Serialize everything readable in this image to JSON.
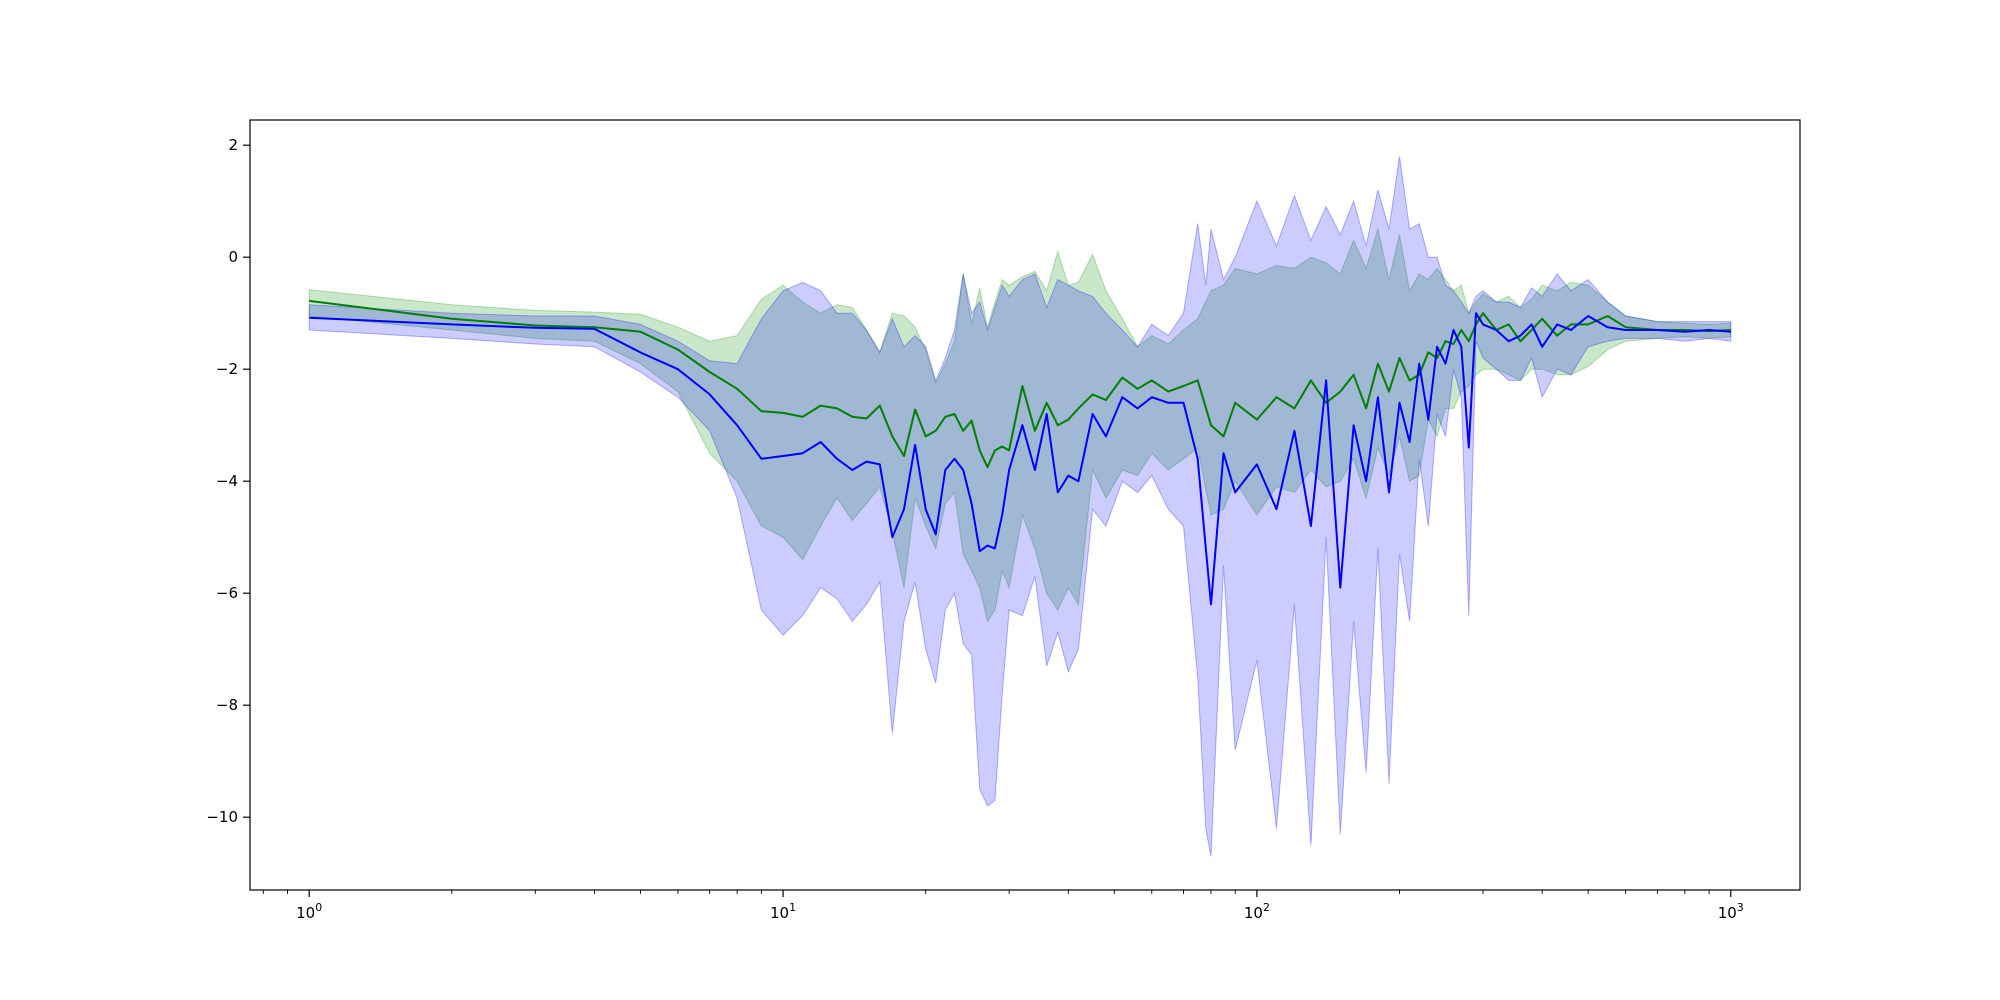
{
  "chart_data": {
    "type": "line",
    "title": "",
    "xlabel": "",
    "ylabel": "",
    "xscale": "log",
    "xlim": [
      0.75,
      1400
    ],
    "ylim": [
      -11.3,
      2.45
    ],
    "grid": false,
    "legend": "none",
    "x_ticks": [
      {
        "value": 1,
        "base": "10",
        "exp": "0"
      },
      {
        "value": 10,
        "base": "10",
        "exp": "1"
      },
      {
        "value": 100,
        "base": "10",
        "exp": "2"
      },
      {
        "value": 1000,
        "base": "10",
        "exp": "3"
      }
    ],
    "y_ticks": [
      {
        "value": 2,
        "label": "2"
      },
      {
        "value": 0,
        "label": "0"
      },
      {
        "value": -2,
        "label": "−2"
      },
      {
        "value": -4,
        "label": "−4"
      },
      {
        "value": -6,
        "label": "−6"
      },
      {
        "value": -8,
        "label": "−8"
      },
      {
        "value": -10,
        "label": "−10"
      }
    ],
    "series": [
      {
        "color": "#008000",
        "band_color": "#2ca02c",
        "band_opacity": 0.25,
        "x": [
          1,
          2,
          3,
          4,
          5,
          6,
          7,
          8,
          9,
          10,
          11,
          12,
          13,
          14,
          15,
          16,
          17,
          18,
          19,
          20,
          21,
          22,
          23,
          24,
          25,
          26,
          27,
          28,
          29,
          30,
          32,
          34,
          36,
          38,
          40,
          42,
          45,
          48,
          52,
          56,
          60,
          65,
          70,
          75,
          80,
          85,
          90,
          100,
          110,
          120,
          130,
          140,
          150,
          160,
          170,
          180,
          190,
          200,
          210,
          220,
          230,
          240,
          250,
          260,
          270,
          280,
          290,
          300,
          320,
          340,
          360,
          380,
          400,
          430,
          460,
          500,
          550,
          600,
          700,
          800,
          900,
          1000
        ],
        "y": [
          -0.78,
          -1.1,
          -1.22,
          -1.25,
          -1.33,
          -1.65,
          -2.05,
          -2.35,
          -2.75,
          -2.78,
          -2.85,
          -2.65,
          -2.7,
          -2.85,
          -2.88,
          -2.65,
          -3.2,
          -3.55,
          -2.72,
          -3.2,
          -3.1,
          -2.85,
          -2.8,
          -3.1,
          -2.92,
          -3.45,
          -3.75,
          -3.45,
          -3.38,
          -3.45,
          -2.3,
          -3.1,
          -2.6,
          -3.0,
          -2.9,
          -2.7,
          -2.45,
          -2.55,
          -2.15,
          -2.35,
          -2.2,
          -2.4,
          -2.3,
          -2.2,
          -3.0,
          -3.2,
          -2.6,
          -2.9,
          -2.5,
          -2.7,
          -2.2,
          -2.6,
          -2.4,
          -2.1,
          -2.7,
          -1.9,
          -2.4,
          -1.8,
          -2.2,
          -2.1,
          -1.7,
          -1.8,
          -1.5,
          -1.55,
          -1.3,
          -1.5,
          -1.2,
          -1.0,
          -1.3,
          -1.2,
          -1.5,
          -1.3,
          -1.1,
          -1.4,
          -1.2,
          -1.2,
          -1.05,
          -1.25,
          -1.3,
          -1.3,
          -1.32,
          -1.3
        ],
        "upper": [
          -0.58,
          -0.85,
          -0.95,
          -0.98,
          -1.02,
          -1.25,
          -1.5,
          -1.4,
          -0.75,
          -0.5,
          -0.8,
          -1.0,
          -0.85,
          -0.9,
          -1.3,
          -1.7,
          -1.0,
          -1.05,
          -1.25,
          -1.65,
          -2.25,
          -1.9,
          -1.5,
          -0.3,
          -1.2,
          -0.55,
          -1.25,
          -0.8,
          -0.4,
          -0.5,
          -0.35,
          -0.25,
          -0.6,
          0.1,
          -0.5,
          -0.45,
          0.05,
          -0.6,
          -1.1,
          -1.6,
          -1.4,
          -1.55,
          -1.3,
          -1.1,
          -0.6,
          -0.5,
          -0.2,
          -0.3,
          -0.15,
          -0.2,
          0.0,
          -0.1,
          -0.3,
          0.3,
          -0.2,
          0.5,
          -0.4,
          0.4,
          -0.6,
          -0.3,
          -0.4,
          -0.2,
          -0.4,
          -0.6,
          -0.5,
          -1.0,
          -0.8,
          -0.65,
          -0.8,
          -0.7,
          -0.9,
          -0.75,
          -0.5,
          -0.6,
          -0.45,
          -0.5,
          -0.8,
          -1.05,
          -1.15,
          -1.18,
          -1.2,
          -1.18
        ],
        "lower": [
          -1.05,
          -1.3,
          -1.45,
          -1.5,
          -1.9,
          -2.4,
          -3.5,
          -4.0,
          -4.8,
          -5.0,
          -5.4,
          -4.8,
          -4.3,
          -4.7,
          -4.4,
          -4.1,
          -4.9,
          -5.9,
          -4.3,
          -4.8,
          -5.2,
          -4.4,
          -4.2,
          -5.3,
          -5.6,
          -5.9,
          -6.5,
          -6.3,
          -5.6,
          -5.9,
          -4.6,
          -5.2,
          -6.0,
          -6.3,
          -5.9,
          -6.2,
          -3.8,
          -4.3,
          -3.8,
          -3.9,
          -3.5,
          -3.8,
          -3.6,
          -3.4,
          -4.6,
          -4.5,
          -4.0,
          -4.6,
          -4.1,
          -4.2,
          -3.8,
          -4.1,
          -4.0,
          -3.6,
          -4.3,
          -3.4,
          -3.9,
          -3.2,
          -4.0,
          -3.9,
          -2.9,
          -3.2,
          -2.7,
          -2.7,
          -2.4,
          -2.3,
          -2.1,
          -2.0,
          -2.0,
          -2.1,
          -2.2,
          -2.0,
          -2.0,
          -2.1,
          -2.1,
          -1.95,
          -1.65,
          -1.5,
          -1.45,
          -1.42,
          -1.45,
          -1.42
        ]
      },
      {
        "color": "#0000ff",
        "band_color": "#0000ff",
        "band_opacity": 0.2,
        "x": [
          1,
          2,
          3,
          4,
          5,
          6,
          7,
          8,
          9,
          10,
          11,
          12,
          13,
          14,
          15,
          16,
          17,
          18,
          19,
          20,
          21,
          22,
          23,
          24,
          25,
          26,
          27,
          28,
          29,
          30,
          32,
          34,
          36,
          38,
          40,
          42,
          45,
          48,
          52,
          56,
          60,
          65,
          70,
          75,
          78,
          80,
          85,
          90,
          100,
          110,
          120,
          130,
          140,
          150,
          160,
          170,
          180,
          190,
          200,
          210,
          220,
          230,
          240,
          250,
          260,
          270,
          280,
          290,
          300,
          320,
          340,
          360,
          380,
          400,
          430,
          460,
          500,
          550,
          600,
          700,
          800,
          900,
          1000
        ],
        "y": [
          -1.08,
          -1.2,
          -1.26,
          -1.28,
          -1.7,
          -2.0,
          -2.45,
          -3.0,
          -3.6,
          -3.55,
          -3.5,
          -3.3,
          -3.6,
          -3.8,
          -3.65,
          -3.7,
          -5.0,
          -4.5,
          -3.35,
          -4.5,
          -4.95,
          -3.8,
          -3.6,
          -3.8,
          -4.4,
          -5.25,
          -5.15,
          -5.2,
          -4.6,
          -3.8,
          -3.0,
          -3.8,
          -2.8,
          -4.2,
          -3.9,
          -4.0,
          -2.8,
          -3.2,
          -2.5,
          -2.7,
          -2.5,
          -2.6,
          -2.6,
          -3.6,
          -5.2,
          -6.2,
          -3.5,
          -4.2,
          -3.7,
          -4.5,
          -3.1,
          -4.8,
          -2.2,
          -5.9,
          -3.0,
          -4.0,
          -2.5,
          -4.2,
          -2.6,
          -3.3,
          -1.9,
          -2.9,
          -1.6,
          -1.9,
          -1.3,
          -1.6,
          -3.4,
          -1.0,
          -1.2,
          -1.3,
          -1.5,
          -1.4,
          -1.2,
          -1.6,
          -1.2,
          -1.3,
          -1.05,
          -1.25,
          -1.3,
          -1.3,
          -1.33,
          -1.3,
          -1.33
        ],
        "upper": [
          -0.85,
          -1.0,
          -1.05,
          -1.05,
          -1.2,
          -1.5,
          -1.85,
          -1.9,
          -1.1,
          -0.6,
          -0.45,
          -0.6,
          -1.0,
          -1.0,
          -1.3,
          -1.7,
          -1.1,
          -1.6,
          -1.4,
          -1.6,
          -2.2,
          -1.8,
          -1.3,
          -0.3,
          -1.0,
          -0.8,
          -1.3,
          -0.9,
          -0.5,
          -0.7,
          -0.4,
          -0.3,
          -0.9,
          -0.4,
          -0.5,
          -0.6,
          -0.7,
          -1.0,
          -1.3,
          -1.6,
          -1.2,
          -1.4,
          -1.0,
          0.6,
          -0.5,
          0.5,
          -0.4,
          0.0,
          1.0,
          0.2,
          1.1,
          0.3,
          0.9,
          0.4,
          1.0,
          0.2,
          1.2,
          0.5,
          1.8,
          0.5,
          0.6,
          0.0,
          0.0,
          -0.5,
          -0.6,
          -0.8,
          -1.0,
          -0.7,
          -0.6,
          -0.8,
          -0.8,
          -0.9,
          -0.55,
          -0.7,
          -0.3,
          -0.6,
          -0.4,
          -0.8,
          -1.05,
          -1.15,
          -1.15,
          -1.15,
          -1.15
        ],
        "lower": [
          -1.3,
          -1.45,
          -1.55,
          -1.6,
          -2.05,
          -2.5,
          -3.1,
          -4.3,
          -6.3,
          -6.75,
          -6.4,
          -5.9,
          -6.1,
          -6.5,
          -6.2,
          -5.8,
          -8.5,
          -6.5,
          -5.8,
          -7.0,
          -7.6,
          -6.3,
          -6.0,
          -6.9,
          -7.1,
          -9.5,
          -9.8,
          -9.7,
          -7.8,
          -6.3,
          -6.4,
          -5.7,
          -7.3,
          -6.7,
          -7.4,
          -7.0,
          -4.5,
          -4.8,
          -4.0,
          -4.2,
          -3.9,
          -4.5,
          -4.8,
          -7.5,
          -10.2,
          -10.7,
          -5.5,
          -8.8,
          -7.2,
          -10.2,
          -6.2,
          -10.5,
          -5.0,
          -10.3,
          -6.5,
          -9.2,
          -5.2,
          -9.4,
          -5.3,
          -6.5,
          -3.6,
          -4.8,
          -2.8,
          -3.2,
          -2.0,
          -2.5,
          -6.4,
          -1.5,
          -1.8,
          -2.0,
          -2.2,
          -2.2,
          -1.8,
          -2.5,
          -2.0,
          -2.1,
          -1.6,
          -1.5,
          -1.45,
          -1.45,
          -1.5,
          -1.45,
          -1.5
        ]
      }
    ]
  }
}
